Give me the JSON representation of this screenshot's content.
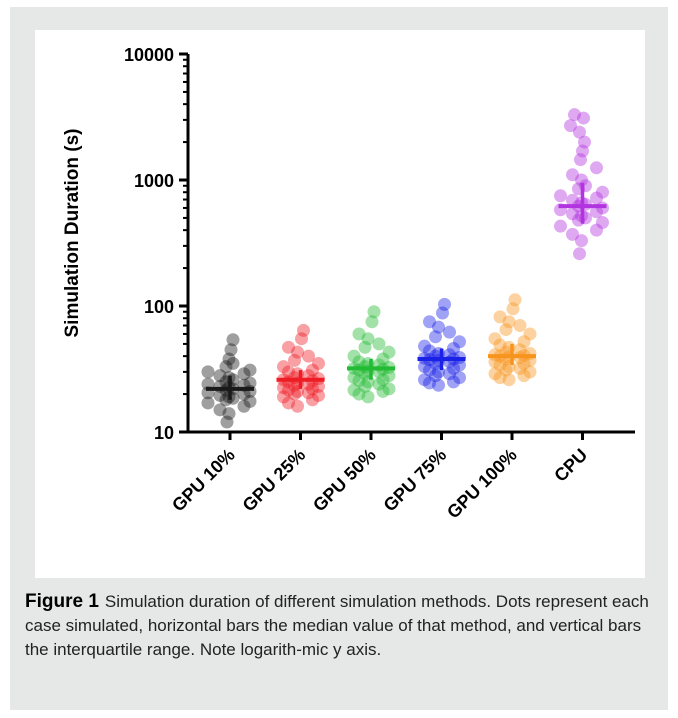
{
  "chart_data": {
    "type": "scatter",
    "ylabel": "Simulation Duration (s)",
    "xlabel": "",
    "yscale": "log",
    "ylim": [
      10,
      10000
    ],
    "yticks": [
      10,
      100,
      1000,
      10000
    ],
    "ytick_labels": [
      "10",
      "100",
      "1000",
      "10000"
    ],
    "grid": false,
    "categories": [
      "GPU 10%",
      "GPU 25%",
      "GPU 50%",
      "GPU 75%",
      "GPU 100%",
      "CPU"
    ],
    "series": [
      {
        "category": "GPU 10%",
        "color": "#1a1a1a",
        "median": 22,
        "iqr": [
          18,
          28
        ],
        "points": [
          54,
          45,
          38,
          35,
          33,
          31,
          30,
          29,
          28,
          27,
          26,
          25,
          24.5,
          24,
          23.5,
          23,
          22.5,
          22,
          21.5,
          21,
          20.5,
          20,
          19.5,
          19,
          18.5,
          18,
          17.5,
          17,
          16,
          15,
          14,
          12
        ]
      },
      {
        "category": "GPU 25%",
        "color": "#ee1c25",
        "median": 26,
        "iqr": [
          22,
          31
        ],
        "points": [
          64,
          55,
          47,
          43,
          40,
          37,
          35,
          33,
          31,
          30,
          29,
          28,
          27,
          26.5,
          26,
          25.5,
          25,
          24.5,
          24,
          23.5,
          23,
          22.5,
          22,
          21.5,
          21,
          20.5,
          20,
          19.5,
          19,
          18,
          17,
          16
        ]
      },
      {
        "category": "GPU 50%",
        "color": "#22bb33",
        "median": 32,
        "iqr": [
          26,
          38
        ],
        "points": [
          90,
          75,
          60,
          55,
          50,
          47,
          43,
          40,
          38,
          36,
          35,
          34,
          33,
          32.5,
          32,
          31.5,
          31,
          30.5,
          30,
          29,
          28,
          27,
          26,
          25.5,
          25,
          24,
          23,
          22,
          21.5,
          21,
          20,
          19
        ]
      },
      {
        "category": "GPU 75%",
        "color": "#1b22e8",
        "median": 38,
        "iqr": [
          31,
          46
        ],
        "points": [
          103,
          88,
          75,
          68,
          62,
          57,
          52,
          48,
          46,
          44,
          42,
          41,
          40,
          39,
          38.5,
          38,
          37.5,
          37,
          36,
          35,
          34,
          33,
          32,
          31,
          30,
          29,
          28,
          27,
          26,
          25,
          24.5,
          23.5
        ]
      },
      {
        "category": "GPU 100%",
        "color": "#f7941d",
        "median": 40,
        "iqr": [
          34,
          50
        ],
        "points": [
          112,
          95,
          82,
          75,
          70,
          65,
          60,
          55,
          52,
          49,
          47,
          45,
          43,
          42,
          41,
          40.5,
          40,
          39.5,
          39,
          38,
          37,
          36,
          35,
          34,
          33,
          32,
          31,
          30,
          29,
          28,
          27,
          26
        ]
      },
      {
        "category": "CPU",
        "color": "#b233e0",
        "median": 620,
        "iqr": [
          450,
          950
        ],
        "points": [
          3300,
          3100,
          2700,
          2400,
          2000,
          1700,
          1450,
          1250,
          1100,
          1000,
          900,
          850,
          800,
          750,
          720,
          690,
          660,
          640,
          620,
          600,
          580,
          560,
          540,
          520,
          500,
          480,
          460,
          430,
          400,
          370,
          330,
          260
        ]
      }
    ]
  },
  "caption": {
    "label": "Figure 1",
    "text": "Simulation duration of different simulation methods. Dots represent each case simulated, horizontal bars the median value of that method, and vertical bars the interquartile range. Note logarith-mic y axis."
  }
}
